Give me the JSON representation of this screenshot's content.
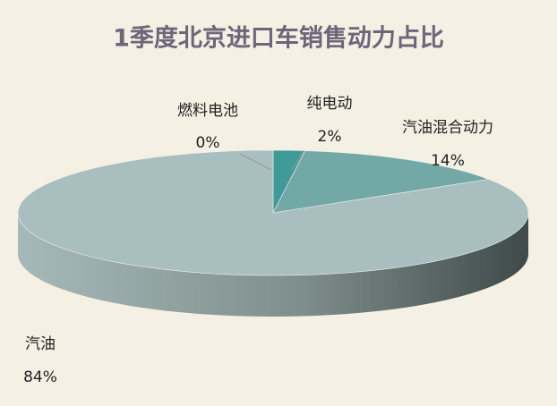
{
  "chart_data": {
    "type": "pie3d",
    "title": "1季度北京进口车销售动力占比",
    "categories": [
      "燃料电池",
      "纯电动",
      "汽油混合动力",
      "汽油"
    ],
    "values": [
      0,
      2,
      14,
      84
    ],
    "value_labels": [
      "0%",
      "2%",
      "14%",
      "84%"
    ],
    "colors": [
      "#2e7f7c",
      "#3f9a98",
      "#72a8a5",
      "#a9bebe"
    ]
  }
}
